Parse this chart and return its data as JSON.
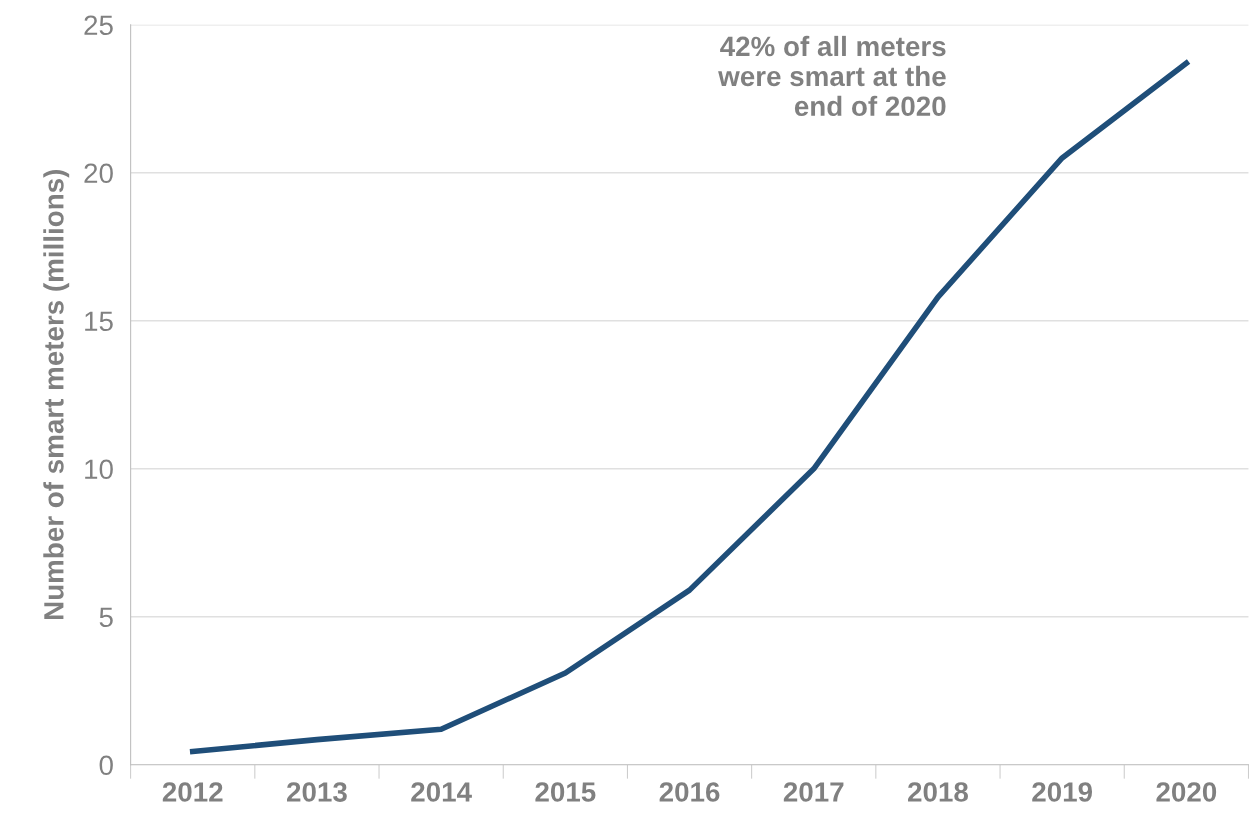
{
  "chart_data": {
    "type": "line",
    "ylabel": "Number of smart meters (millions)",
    "categories": [
      "2012",
      "2013",
      "2014",
      "2015",
      "2016",
      "2017",
      "2018",
      "2019",
      "2020"
    ],
    "series": [
      {
        "color": "#1f4e79",
        "values": [
          0.45,
          0.85,
          1.2,
          3.1,
          5.9,
          10.0,
          15.8,
          20.5,
          23.7
        ]
      }
    ],
    "ylim": [
      0,
      25
    ],
    "yticks": [
      0,
      5,
      10,
      15,
      20,
      25
    ],
    "grid": "y",
    "legend": false,
    "marker": "none",
    "line_style": "solid",
    "annotations": [
      "42% of all meters\nwere smart at the\nend of 2020"
    ]
  }
}
